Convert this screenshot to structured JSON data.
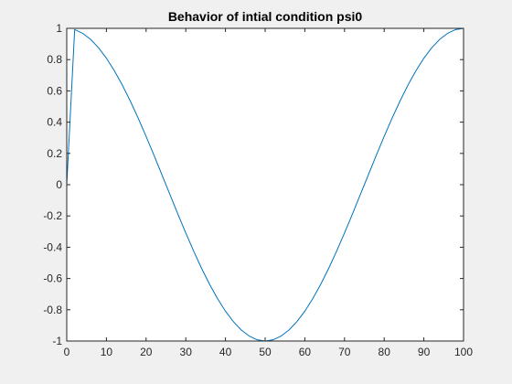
{
  "chart_data": {
    "type": "line",
    "title": "Behavior of  intial condition psi0",
    "xlabel": "",
    "ylabel": "",
    "xlim": [
      0,
      100
    ],
    "ylim": [
      -1,
      1
    ],
    "xticks": [
      0,
      10,
      20,
      30,
      40,
      50,
      60,
      70,
      80,
      90,
      100
    ],
    "yticks": [
      -1,
      -0.8,
      -0.6,
      -0.4,
      -0.2,
      0,
      0.2,
      0.4,
      0.6,
      0.8,
      1
    ],
    "xtick_labels": [
      "0",
      "10",
      "20",
      "30",
      "40",
      "50",
      "60",
      "70",
      "80",
      "90",
      "100"
    ],
    "ytick_labels": [
      "-1",
      "-0.8",
      "-0.6",
      "-0.4",
      "-0.2",
      "0",
      "0.2",
      "0.4",
      "0.6",
      "0.8",
      "1"
    ],
    "grid": false,
    "box": true,
    "series": [
      {
        "color": "#0072bd",
        "x": [
          0,
          2,
          4,
          6,
          8,
          10,
          12,
          14,
          16,
          18,
          20,
          22,
          24,
          26,
          28,
          30,
          32,
          34,
          36,
          38,
          40,
          42,
          44,
          46,
          48,
          50,
          52,
          54,
          56,
          58,
          60,
          62,
          64,
          66,
          68,
          70,
          72,
          74,
          76,
          78,
          80,
          82,
          84,
          86,
          88,
          90,
          92,
          94,
          96,
          98,
          100
        ],
        "y": [
          0,
          0.9921,
          0.9686,
          0.9298,
          0.8763,
          0.809,
          0.729,
          0.6374,
          0.5358,
          0.4258,
          0.309,
          0.1874,
          0.0628,
          -0.0628,
          -0.1874,
          -0.309,
          -0.4258,
          -0.5358,
          -0.6374,
          -0.729,
          -0.809,
          -0.8763,
          -0.9298,
          -0.9686,
          -0.9921,
          -1,
          -0.9921,
          -0.9686,
          -0.9298,
          -0.8763,
          -0.809,
          -0.729,
          -0.6374,
          -0.5358,
          -0.4258,
          -0.309,
          -0.1874,
          -0.0628,
          0.0628,
          0.1874,
          0.309,
          0.4258,
          0.5358,
          0.6374,
          0.729,
          0.809,
          0.8763,
          0.9298,
          0.9686,
          0.9921,
          1
        ]
      }
    ]
  }
}
